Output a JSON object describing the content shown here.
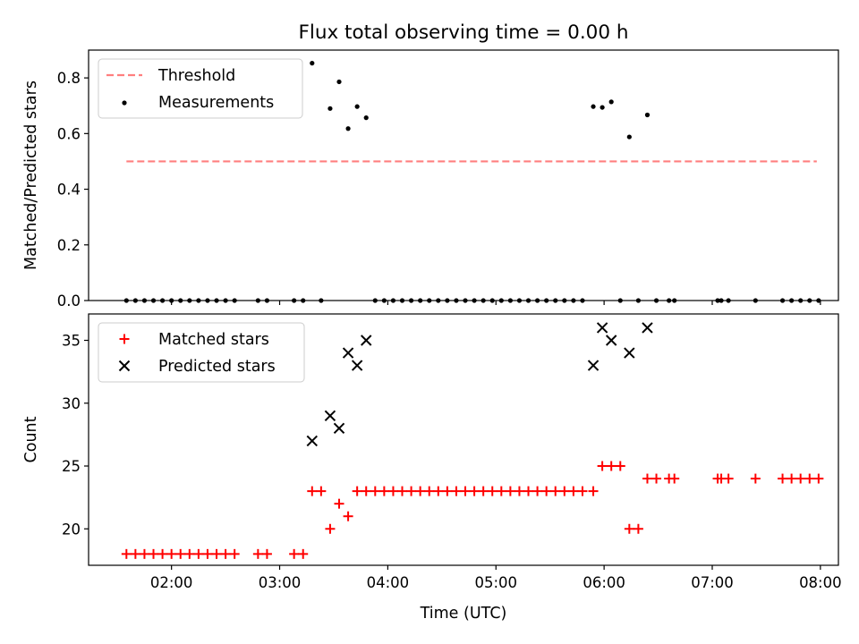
{
  "title": "Flux total observing time = 0.00 h",
  "chart_data": [
    {
      "type": "scatter",
      "title": "Flux total observing time = 0.00 h",
      "ylabel": "Matched/Predicted stars",
      "xlabel": "",
      "xlim": [
        "01:14",
        "08:10"
      ],
      "ylim": [
        0,
        0.9
      ],
      "yticks": [
        0.0,
        0.2,
        0.4,
        0.6,
        0.8
      ],
      "ytick_labels": [
        "0.0",
        "0.2",
        "0.4",
        "0.6",
        "0.8"
      ],
      "xticks": [
        "02:00",
        "03:00",
        "04:00",
        "05:00",
        "06:00",
        "07:00",
        "08:00"
      ],
      "grid": false,
      "legend_position": "top-left",
      "threshold": {
        "name": "Threshold",
        "value": 0.5,
        "x_range": [
          "01:35",
          "07:58"
        ],
        "color": "#ff7f7f",
        "style": "dashed"
      },
      "series": [
        {
          "name": "Measurements",
          "color": "#000000",
          "points": [
            [
              "01:35",
              0.0
            ],
            [
              "01:40",
              0.0
            ],
            [
              "01:45",
              0.0
            ],
            [
              "01:50",
              0.0
            ],
            [
              "01:55",
              0.0
            ],
            [
              "02:00",
              0.0
            ],
            [
              "02:05",
              0.0
            ],
            [
              "02:10",
              0.0
            ],
            [
              "02:15",
              0.0
            ],
            [
              "02:20",
              0.0
            ],
            [
              "02:25",
              0.0
            ],
            [
              "02:30",
              0.0
            ],
            [
              "02:35",
              0.0
            ],
            [
              "02:48",
              0.0
            ],
            [
              "02:53",
              0.0
            ],
            [
              "03:08",
              0.0
            ],
            [
              "03:13",
              0.0
            ],
            [
              "03:18",
              0.853
            ],
            [
              "03:23",
              0.0
            ],
            [
              "03:28",
              0.69
            ],
            [
              "03:33",
              0.786
            ],
            [
              "03:38",
              0.618
            ],
            [
              "03:43",
              0.697
            ],
            [
              "03:48",
              0.657
            ],
            [
              "03:53",
              0.0
            ],
            [
              "03:58",
              0.0
            ],
            [
              "04:03",
              0.0
            ],
            [
              "04:08",
              0.0
            ],
            [
              "04:13",
              0.0
            ],
            [
              "04:18",
              0.0
            ],
            [
              "04:23",
              0.0
            ],
            [
              "04:28",
              0.0
            ],
            [
              "04:33",
              0.0
            ],
            [
              "04:38",
              0.0
            ],
            [
              "04:43",
              0.0
            ],
            [
              "04:48",
              0.0
            ],
            [
              "04:53",
              0.0
            ],
            [
              "04:58",
              0.0
            ],
            [
              "05:03",
              0.0
            ],
            [
              "05:08",
              0.0
            ],
            [
              "05:13",
              0.0
            ],
            [
              "05:18",
              0.0
            ],
            [
              "05:23",
              0.0
            ],
            [
              "05:28",
              0.0
            ],
            [
              "05:33",
              0.0
            ],
            [
              "05:38",
              0.0
            ],
            [
              "05:43",
              0.0
            ],
            [
              "05:48",
              0.0
            ],
            [
              "05:54",
              0.697
            ],
            [
              "05:59",
              0.694
            ],
            [
              "06:04",
              0.714
            ],
            [
              "06:09",
              0.0
            ],
            [
              "06:14",
              0.588
            ],
            [
              "06:19",
              0.0
            ],
            [
              "06:24",
              0.667
            ],
            [
              "06:29",
              0.0
            ],
            [
              "06:36",
              0.0
            ],
            [
              "06:39",
              0.0
            ],
            [
              "07:03",
              0.0
            ],
            [
              "07:05",
              0.0
            ],
            [
              "07:09",
              0.0
            ],
            [
              "07:24",
              0.0
            ],
            [
              "07:39",
              0.0
            ],
            [
              "07:44",
              0.0
            ],
            [
              "07:49",
              0.0
            ],
            [
              "07:54",
              0.0
            ],
            [
              "07:59",
              0.0
            ]
          ]
        }
      ]
    },
    {
      "type": "scatter",
      "title": "",
      "ylabel": "Count",
      "xlabel": "Time (UTC)",
      "xlim": [
        "01:14",
        "08:10"
      ],
      "ylim": [
        17.1,
        37.1
      ],
      "yticks": [
        20,
        25,
        30,
        35
      ],
      "ytick_labels": [
        "20",
        "25",
        "30",
        "35"
      ],
      "xticks": [
        "02:00",
        "03:00",
        "04:00",
        "05:00",
        "06:00",
        "07:00",
        "08:00"
      ],
      "xtick_labels": [
        "02:00",
        "03:00",
        "04:00",
        "05:00",
        "06:00",
        "07:00",
        "08:00"
      ],
      "grid": false,
      "legend_position": "top-left",
      "series": [
        {
          "name": "Matched stars",
          "color": "#ff0000",
          "marker": "plus",
          "points": [
            [
              "01:35",
              18
            ],
            [
              "01:40",
              18
            ],
            [
              "01:45",
              18
            ],
            [
              "01:50",
              18
            ],
            [
              "01:55",
              18
            ],
            [
              "02:00",
              18
            ],
            [
              "02:05",
              18
            ],
            [
              "02:10",
              18
            ],
            [
              "02:15",
              18
            ],
            [
              "02:20",
              18
            ],
            [
              "02:25",
              18
            ],
            [
              "02:30",
              18
            ],
            [
              "02:35",
              18
            ],
            [
              "02:48",
              18
            ],
            [
              "02:53",
              18
            ],
            [
              "03:08",
              18
            ],
            [
              "03:13",
              18
            ],
            [
              "03:18",
              23
            ],
            [
              "03:23",
              23
            ],
            [
              "03:28",
              20
            ],
            [
              "03:33",
              22
            ],
            [
              "03:38",
              21
            ],
            [
              "03:43",
              23
            ],
            [
              "03:48",
              23
            ],
            [
              "03:53",
              23
            ],
            [
              "03:58",
              23
            ],
            [
              "04:03",
              23
            ],
            [
              "04:08",
              23
            ],
            [
              "04:13",
              23
            ],
            [
              "04:18",
              23
            ],
            [
              "04:23",
              23
            ],
            [
              "04:28",
              23
            ],
            [
              "04:33",
              23
            ],
            [
              "04:38",
              23
            ],
            [
              "04:43",
              23
            ],
            [
              "04:48",
              23
            ],
            [
              "04:53",
              23
            ],
            [
              "04:58",
              23
            ],
            [
              "05:03",
              23
            ],
            [
              "05:08",
              23
            ],
            [
              "05:13",
              23
            ],
            [
              "05:18",
              23
            ],
            [
              "05:23",
              23
            ],
            [
              "05:28",
              23
            ],
            [
              "05:33",
              23
            ],
            [
              "05:38",
              23
            ],
            [
              "05:43",
              23
            ],
            [
              "05:48",
              23
            ],
            [
              "05:54",
              23
            ],
            [
              "05:59",
              25
            ],
            [
              "06:04",
              25
            ],
            [
              "06:09",
              25
            ],
            [
              "06:14",
              20
            ],
            [
              "06:19",
              20
            ],
            [
              "06:24",
              24
            ],
            [
              "06:29",
              24
            ],
            [
              "06:36",
              24
            ],
            [
              "06:39",
              24
            ],
            [
              "07:03",
              24
            ],
            [
              "07:05",
              24
            ],
            [
              "07:09",
              24
            ],
            [
              "07:24",
              24
            ],
            [
              "07:39",
              24
            ],
            [
              "07:44",
              24
            ],
            [
              "07:49",
              24
            ],
            [
              "07:54",
              24
            ],
            [
              "07:59",
              24
            ]
          ]
        },
        {
          "name": "Predicted stars",
          "color": "#000000",
          "marker": "x",
          "points": [
            [
              "03:18",
              27
            ],
            [
              "03:28",
              29
            ],
            [
              "03:33",
              28
            ],
            [
              "03:38",
              34
            ],
            [
              "03:43",
              33
            ],
            [
              "03:48",
              35
            ],
            [
              "05:54",
              33
            ],
            [
              "05:59",
              36
            ],
            [
              "06:04",
              35
            ],
            [
              "06:14",
              34
            ],
            [
              "06:24",
              36
            ]
          ]
        }
      ]
    }
  ]
}
